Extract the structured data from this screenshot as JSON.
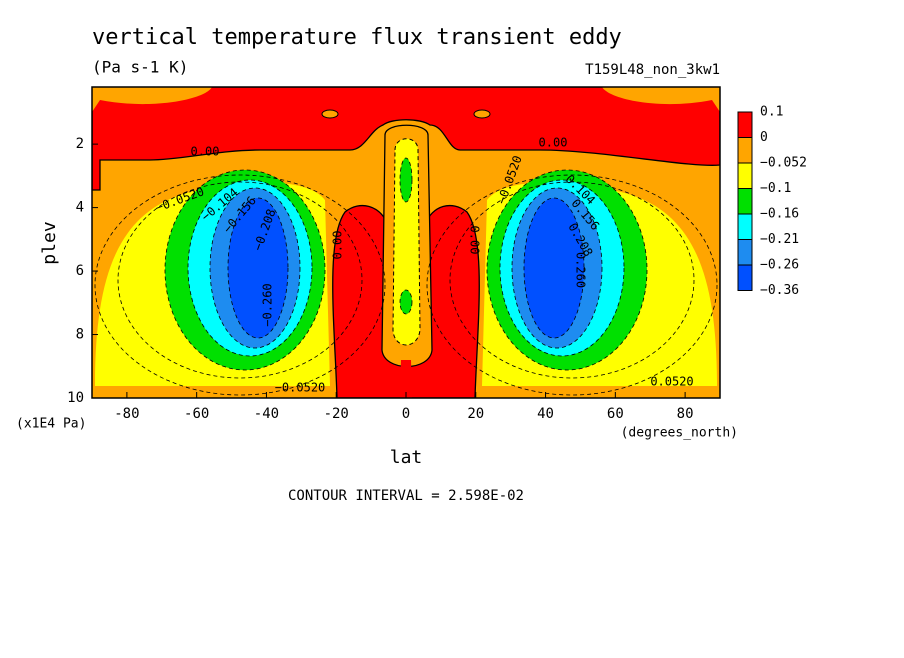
{
  "chart_data": {
    "type": "contour",
    "title": "vertical temperature flux transient eddy",
    "subtitle": "(Pa s-1 K)",
    "run_label": "T159L48_non_3kw1",
    "x_label": "lat",
    "x_unit_label": "(degrees_north)",
    "y_label": "plev",
    "y_unit_label": "(x1E4 Pa)",
    "footer": "CONTOUR INTERVAL = 2.598E-02",
    "xlim": [
      -90,
      90
    ],
    "ylim": [
      10,
      0.2
    ],
    "xticks": [
      -80,
      -60,
      -40,
      -20,
      0,
      20,
      40,
      60,
      80
    ],
    "yticks": [
      2,
      4,
      6,
      8,
      10
    ],
    "levels": [
      0.1,
      0,
      {
        "value": -0.052,
        "label": "−0.052"
      },
      {
        "value": -0.1,
        "label": "−0.1"
      },
      {
        "value": -0.16,
        "label": "−0.16"
      },
      {
        "value": -0.21,
        "label": "−0.21"
      },
      {
        "value": -0.26,
        "label": "−0.26"
      },
      {
        "value": -0.36,
        "label": "−0.36"
      }
    ],
    "colors": [
      "#ff0000",
      "#ffa500",
      "#ffff00",
      "#00e000",
      "#00ffff",
      "#1e8cf0",
      "#0050ff"
    ],
    "contour_labels": [
      "0.00",
      "0.00",
      "0.00",
      "0.00",
      "−0.0520",
      "−0.0520",
      "−0.0520",
      "0.0520",
      "−0.104",
      "0.104",
      "−0.156",
      "0.156",
      "−0.208",
      "0.208",
      "−0.260",
      "0.260"
    ]
  }
}
